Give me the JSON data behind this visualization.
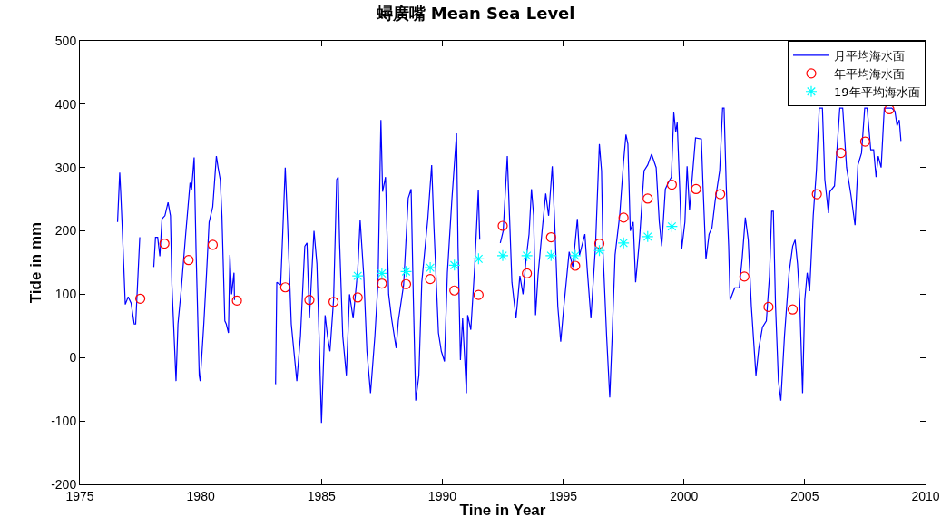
{
  "chart_data": {
    "type": "line",
    "title": "蟳廣嘴 Mean Sea Level",
    "xlabel": "Tine in Year",
    "ylabel": "Tide in mm",
    "xlim": [
      1975,
      2010
    ],
    "xticks": [
      1975,
      1980,
      1985,
      1990,
      1995,
      2000,
      2005,
      2010
    ],
    "ylim": [
      -200,
      500
    ],
    "yticks": [
      -200,
      -100,
      0,
      100,
      200,
      300,
      400,
      500
    ],
    "grid": false,
    "legend": "top right",
    "line_style": "solid",
    "series": [
      {
        "name": "月平均海水面",
        "color": "#0000ff",
        "marker": "none",
        "x": [
          1976.56,
          1976.65,
          1976.69,
          1976.75,
          1976.88,
          1977.0,
          1977.12,
          1977.25,
          1977.31,
          1977.48,
          1977.75,
          1978.06,
          1978.13,
          1978.22,
          1978.31,
          1978.4,
          1978.52,
          1978.65,
          1978.75,
          1978.81,
          1978.98,
          1979.06,
          1979.19,
          1979.38,
          1979.56,
          1979.62,
          1979.73,
          1979.81,
          1979.94,
          1979.98,
          1980.13,
          1980.25,
          1980.35,
          1980.5,
          1980.65,
          1980.72,
          1980.81,
          1980.88,
          1981.0,
          1981.06,
          1981.15,
          1981.21,
          1981.28,
          1981.38,
          1981.4,
          1982.2,
          1983.1,
          1983.15,
          1983.31,
          1983.4,
          1983.5,
          1983.6,
          1983.75,
          1983.98,
          1984.13,
          1984.31,
          1984.4,
          1984.5,
          1984.69,
          1984.81,
          1984.9,
          1985.0,
          1985.15,
          1985.25,
          1985.35,
          1985.5,
          1985.63,
          1985.69,
          1985.75,
          1985.88,
          1986.03,
          1986.16,
          1986.31,
          1986.5,
          1986.6,
          1986.75,
          1986.88,
          1987.03,
          1987.21,
          1987.34,
          1987.46,
          1987.53,
          1987.65,
          1987.78,
          1987.9,
          1988.09,
          1988.18,
          1988.4,
          1988.59,
          1988.71,
          1988.8,
          1988.9,
          1989.03,
          1989.15,
          1989.4,
          1989.56,
          1989.65,
          1989.84,
          1989.96,
          1990.09,
          1990.21,
          1990.4,
          1990.59,
          1990.65,
          1990.75,
          1990.84,
          1991.0,
          1991.05,
          1991.18,
          1991.34,
          1991.49,
          1991.55,
          1992.0,
          1992.4,
          1992.52,
          1992.69,
          1992.78,
          1992.88,
          1993.05,
          1993.21,
          1993.34,
          1993.46,
          1993.59,
          1993.69,
          1993.78,
          1993.86,
          1993.96,
          1994.13,
          1994.28,
          1994.4,
          1994.55,
          1994.65,
          1994.78,
          1994.9,
          1995.03,
          1995.25,
          1995.4,
          1995.59,
          1995.68,
          1995.9,
          1996.0,
          1996.15,
          1996.34,
          1996.5,
          1996.59,
          1996.65,
          1996.8,
          1996.93,
          1997.03,
          1997.15,
          1997.34,
          1997.5,
          1997.6,
          1997.68,
          1997.78,
          1997.9,
          1998.0,
          1998.16,
          1998.35,
          1998.5,
          1998.66,
          1998.85,
          1998.98,
          1999.08,
          1999.23,
          1999.35,
          1999.48,
          1999.58,
          1999.66,
          1999.72,
          1999.83,
          1999.91,
          2000.04,
          2000.13,
          2000.23,
          2000.48,
          2000.72,
          2000.79,
          2000.91,
          2001.04,
          2001.16,
          2001.29,
          2001.48,
          2001.6,
          2001.66,
          2001.75,
          2001.85,
          2001.91,
          2002.1,
          2002.29,
          2002.41,
          2002.54,
          2002.66,
          2002.79,
          2002.98,
          2003.1,
          2003.25,
          2003.41,
          2003.54,
          2003.63,
          2003.7,
          2003.79,
          2003.91,
          2004.01,
          2004.16,
          2004.35,
          2004.5,
          2004.6,
          2004.7,
          2004.79,
          2004.91,
          2005.0,
          2005.1,
          2005.2,
          2005.35,
          2005.48,
          2005.6,
          2005.73,
          2005.83,
          2005.98,
          2006.04,
          2006.23,
          2006.45,
          2006.57,
          2006.73,
          2006.91,
          2007.08,
          2007.2,
          2007.35,
          2007.48,
          2007.58,
          2007.73,
          2007.85,
          2007.95,
          2008.04,
          2008.16,
          2008.29,
          2008.6,
          2008.73,
          2008.82,
          2008.91,
          2008.98
        ],
        "values": [
          214,
          292,
          262,
          209,
          84,
          96,
          86,
          53,
          53,
          190,
          null,
          143,
          190,
          190,
          160,
          219,
          224,
          245,
          224,
          115,
          -37,
          53,
          105,
          195,
          276,
          264,
          316,
          167,
          -28,
          -37,
          53,
          138,
          214,
          238,
          318,
          300,
          281,
          224,
          58,
          53,
          39,
          162,
          100,
          134,
          91,
          null,
          -42,
          119,
          115,
          200,
          300,
          209,
          53,
          -37,
          34,
          176,
          181,
          62,
          200,
          148,
          34,
          -103,
          67,
          34,
          10,
          91,
          281,
          285,
          181,
          34,
          -28,
          100,
          62,
          138,
          217,
          129,
          10,
          -56,
          34,
          119,
          375,
          262,
          285,
          100,
          62,
          15,
          58,
          115,
          252,
          266,
          96,
          -68,
          -28,
          119,
          219,
          304,
          209,
          39,
          10,
          -6,
          134,
          252,
          354,
          176,
          -4,
          62,
          -56,
          67,
          44,
          143,
          264,
          186,
          null,
          181,
          200,
          318,
          224,
          119,
          62,
          129,
          100,
          153,
          195,
          266,
          224,
          67,
          129,
          200,
          259,
          224,
          302,
          214,
          81,
          25,
          81,
          167,
          143,
          219,
          162,
          195,
          138,
          62,
          176,
          337,
          295,
          167,
          34,
          -63,
          34,
          162,
          224,
          309,
          352,
          337,
          200,
          214,
          119,
          186,
          295,
          304,
          321,
          300,
          214,
          176,
          266,
          276,
          285,
          387,
          356,
          371,
          262,
          172,
          214,
          302,
          233,
          347,
          345,
          271,
          155,
          195,
          205,
          247,
          295,
          394,
          394,
          271,
          176,
          91,
          110,
          110,
          157,
          221,
          186,
          81,
          -28,
          15,
          48,
          58,
          129,
          231,
          231,
          81,
          -37,
          -68,
          34,
          134,
          176,
          186,
          148,
          91,
          -56,
          91,
          134,
          105,
          224,
          295,
          394,
          394,
          281,
          228,
          262,
          271,
          394,
          394,
          300,
          257,
          209,
          304,
          323,
          394,
          394,
          328,
          328,
          285,
          318,
          300,
          394,
          394,
          389,
          366,
          375,
          342
        ]
      },
      {
        "name": "年平均海水面",
        "type": "scatter",
        "color": "#ff0000",
        "marker": "circle",
        "x": [
          1977.5,
          1978.5,
          1979.5,
          1980.5,
          1981.5,
          1983.5,
          1984.5,
          1985.5,
          1986.5,
          1987.5,
          1988.5,
          1989.5,
          1990.5,
          1991.5,
          1992.5,
          1993.5,
          1994.5,
          1995.5,
          1996.5,
          1997.5,
          1998.5,
          1999.5,
          2000.5,
          2001.5,
          2002.5,
          2003.5,
          2004.5,
          2005.5,
          2006.5,
          2007.5,
          2008.5
        ],
        "values": [
          93,
          180,
          154,
          178,
          90,
          111,
          91,
          88,
          95,
          117,
          116,
          124,
          106,
          99,
          208,
          133,
          190,
          145,
          180,
          221,
          251,
          273,
          266,
          258,
          128,
          80,
          76,
          258,
          323,
          341,
          392
        ]
      },
      {
        "name": "19年平均海水面",
        "type": "scatter",
        "color": "#00ffff",
        "marker": "cross",
        "x": [
          1986.5,
          1987.5,
          1988.5,
          1989.5,
          1990.5,
          1991.5,
          1992.5,
          1993.5,
          1994.5,
          1995.5,
          1996.5,
          1997.5,
          1998.5,
          1999.5
        ],
        "values": [
          129,
          133,
          136,
          142,
          146,
          156,
          161,
          161,
          161,
          161,
          169,
          181,
          191,
          207
        ]
      }
    ]
  }
}
